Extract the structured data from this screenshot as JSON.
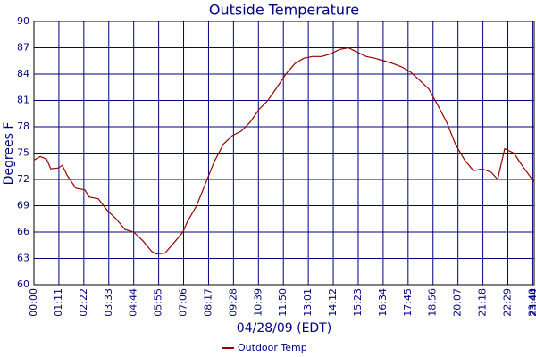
{
  "chart_data": {
    "type": "line",
    "title": "Outside Temperature",
    "y_label": "Degrees F",
    "x_label": "04/28/09 (EDT)",
    "xlim": [
      0,
      1424
    ],
    "ylim": [
      60,
      90
    ],
    "yticks": [
      60,
      63,
      66,
      69,
      72,
      75,
      78,
      81,
      84,
      87,
      90
    ],
    "xticks": [
      {
        "value": 0,
        "label": "00:00"
      },
      {
        "value": 71,
        "label": "01:11"
      },
      {
        "value": 142,
        "label": "02:22"
      },
      {
        "value": 213,
        "label": "03:33"
      },
      {
        "value": 284,
        "label": "04:44"
      },
      {
        "value": 355,
        "label": "05:55"
      },
      {
        "value": 426,
        "label": "07:06"
      },
      {
        "value": 497,
        "label": "08:17"
      },
      {
        "value": 568,
        "label": "09:28"
      },
      {
        "value": 639,
        "label": "10:39"
      },
      {
        "value": 710,
        "label": "11:50"
      },
      {
        "value": 781,
        "label": "13:01"
      },
      {
        "value": 852,
        "label": "14:12"
      },
      {
        "value": 923,
        "label": "15:23"
      },
      {
        "value": 994,
        "label": "16:34"
      },
      {
        "value": 1065,
        "label": "17:45"
      },
      {
        "value": 1136,
        "label": "18:56"
      },
      {
        "value": 1207,
        "label": "20:07"
      },
      {
        "value": 1278,
        "label": "21:18"
      },
      {
        "value": 1349,
        "label": "22:29"
      },
      {
        "value": 1420,
        "label": "23:40"
      },
      {
        "value": 1424,
        "label": "23:44"
      }
    ],
    "grid": true,
    "legend": "bottom",
    "x": [
      0,
      18,
      36,
      48,
      69,
      81,
      94,
      119,
      145,
      157,
      183,
      208,
      234,
      259,
      284,
      310,
      335,
      348,
      373,
      399,
      424,
      437,
      463,
      488,
      513,
      539,
      565,
      590,
      615,
      641,
      666,
      692,
      717,
      743,
      768,
      793,
      819,
      844,
      870,
      895,
      920,
      946,
      971,
      997,
      1022,
      1048,
      1073,
      1098,
      1124,
      1149,
      1175,
      1200,
      1226,
      1251,
      1277,
      1302,
      1320,
      1340,
      1366,
      1391,
      1424
    ],
    "series": [
      {
        "name": "Outdoor Temp",
        "color": "#990000",
        "values": [
          74.2,
          74.6,
          74.3,
          73.2,
          73.3,
          73.6,
          72.5,
          71.0,
          70.8,
          70.0,
          69.8,
          68.5,
          67.5,
          66.3,
          66.0,
          65.0,
          63.8,
          63.5,
          63.6,
          64.8,
          66.0,
          67.2,
          69.0,
          71.5,
          74.0,
          76.0,
          77.0,
          77.5,
          78.5,
          80.0,
          81.0,
          82.5,
          84.0,
          85.2,
          85.8,
          86.0,
          86.0,
          86.3,
          86.8,
          87.0,
          86.5,
          86.0,
          85.8,
          85.5,
          85.2,
          84.8,
          84.2,
          83.3,
          82.3,
          80.5,
          78.5,
          76.0,
          74.2,
          73.0,
          73.2,
          72.8,
          72.0,
          75.5,
          75.0,
          73.5,
          71.7
        ]
      }
    ]
  }
}
